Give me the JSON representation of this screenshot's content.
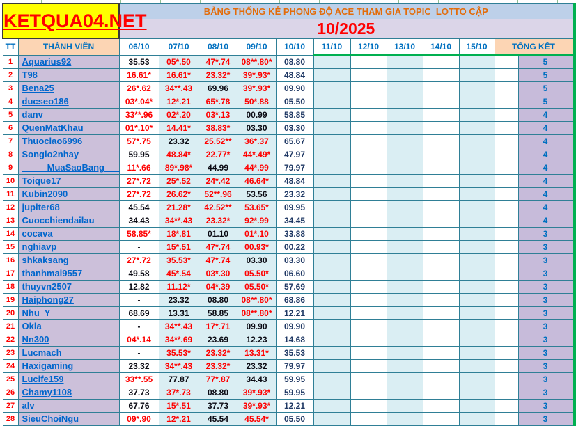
{
  "brand": {
    "logo": "KETQUA04.NET"
  },
  "header": {
    "title": "BẢNG THỐNG KÊ PHONG ĐỘ ACE THAM GIA TOPIC  LOTTO CẬP",
    "month": "10/2025"
  },
  "columns": {
    "tt": "TT",
    "member": "THÀNH VIÊN",
    "dates": [
      "06/10",
      "07/10",
      "08/10",
      "09/10",
      "10/10",
      "11/10",
      "12/10",
      "13/10",
      "14/10",
      "15/10"
    ],
    "total": "TỔNG KẾT"
  },
  "colors": {
    "accent_teal_border": "#2f7f96",
    "accent_green": "#00b050",
    "hit_red": "#ff0000",
    "miss_black": "#0b0b14",
    "result_navy": "#1f3864",
    "name_bg_lavender": "#ccc0da",
    "total_bg_purple": "#c7bbda",
    "date_bg_cyan": "#daeef3",
    "header_peach": "#fcd5b4",
    "title_bg_blue": "#bdd0e9",
    "month_bg_lavender": "#dbd5e8",
    "logo_bg_yellow": "#ffff00",
    "link_blue": "#0066cc"
  },
  "rows": [
    {
      "tt": "1",
      "name": "Aquarius92",
      "link": true,
      "cells": [
        "35.53",
        "05*.50",
        "47*.74",
        "08**.80*",
        "08.80"
      ],
      "red": [
        0,
        1,
        1,
        1,
        0
      ],
      "total": "5"
    },
    {
      "tt": "2",
      "name": "T98",
      "link": false,
      "cells": [
        "16.61*",
        "16.61*",
        "23.32*",
        "39*.93*",
        "48.84"
      ],
      "red": [
        1,
        1,
        1,
        1,
        0
      ],
      "total": "5"
    },
    {
      "tt": "3",
      "name": "Bena25",
      "link": true,
      "cells": [
        "26*.62",
        "34**.43",
        "69.96",
        "39*.93*",
        "09.90"
      ],
      "red": [
        1,
        1,
        0,
        1,
        0
      ],
      "total": "5"
    },
    {
      "tt": "4",
      "name": "ducseo186",
      "link": true,
      "cells": [
        "03*.04*",
        "12*.21",
        "65*.78",
        "50*.88",
        "05.50"
      ],
      "red": [
        1,
        1,
        1,
        1,
        0
      ],
      "total": "5"
    },
    {
      "tt": "5",
      "name": "danv",
      "link": false,
      "cells": [
        "33**.96",
        "02*.20",
        "03*.13",
        "00.99",
        "58.85"
      ],
      "red": [
        1,
        1,
        1,
        0,
        0
      ],
      "total": "4"
    },
    {
      "tt": "6",
      "name": "QuenMatKhau",
      "link": true,
      "cells": [
        "01*.10*",
        "14.41*",
        "38.83*",
        "03.30",
        "03.30"
      ],
      "red": [
        1,
        1,
        1,
        0,
        0
      ],
      "total": "4"
    },
    {
      "tt": "7",
      "name": "Thuoclao6996",
      "link": false,
      "cells": [
        "57*.75",
        "23.32",
        "25.52**",
        "36*.37",
        "65.67"
      ],
      "red": [
        1,
        0,
        1,
        1,
        0
      ],
      "total": "4"
    },
    {
      "tt": "8",
      "name": "Songlo2nhay",
      "link": false,
      "cells": [
        "59.95",
        "48.84*",
        "22.77*",
        "44*.49*",
        "47.97"
      ],
      "red": [
        0,
        1,
        1,
        1,
        0
      ],
      "total": "4"
    },
    {
      "tt": "9",
      "name": "_____MuaSaoBang___",
      "link": true,
      "cells": [
        "11*.66",
        "89*.98*",
        "44.99",
        "44*.99",
        "79.97"
      ],
      "red": [
        1,
        1,
        0,
        1,
        0
      ],
      "total": "4"
    },
    {
      "tt": "10",
      "name": "Toique17",
      "link": false,
      "cells": [
        "27*.72",
        "25*.52",
        "24*.42",
        "46.64*",
        "48.84"
      ],
      "red": [
        1,
        1,
        1,
        1,
        0
      ],
      "total": "4"
    },
    {
      "tt": "11",
      "name": "Kubin2090",
      "link": false,
      "cells": [
        "27*.72",
        "26.62*",
        "52**.96",
        "53.56",
        "23.32"
      ],
      "red": [
        1,
        1,
        1,
        0,
        0
      ],
      "total": "4"
    },
    {
      "tt": "12",
      "name": "jupiter68",
      "link": false,
      "cells": [
        "45.54",
        "21.28*",
        "42.52**",
        "53.65*",
        "09.95"
      ],
      "red": [
        0,
        1,
        1,
        1,
        0
      ],
      "total": "4"
    },
    {
      "tt": "13",
      "name": "Cuocchiendailau",
      "link": false,
      "cells": [
        "34.43",
        "34**.43",
        "23.32*",
        "92*.99",
        "34.45"
      ],
      "red": [
        0,
        1,
        1,
        1,
        0
      ],
      "total": "4"
    },
    {
      "tt": "14",
      "name": "cocava",
      "link": false,
      "cells": [
        "58.85*",
        "18*.81",
        "01.10",
        "01*.10",
        "33.88"
      ],
      "red": [
        1,
        1,
        0,
        1,
        0
      ],
      "total": "3"
    },
    {
      "tt": "15",
      "name": "nghiavp",
      "link": false,
      "cells": [
        "-",
        "15*.51",
        "47*.74",
        "00.93*",
        "00.22"
      ],
      "red": [
        0,
        1,
        1,
        1,
        0
      ],
      "total": "3"
    },
    {
      "tt": "16",
      "name": "shkaksang",
      "link": false,
      "cells": [
        "27*.72",
        "35.53*",
        "47*.74",
        "03.30",
        "03.30"
      ],
      "red": [
        1,
        1,
        1,
        0,
        0
      ],
      "total": "3"
    },
    {
      "tt": "17",
      "name": "thanhmai9557",
      "link": false,
      "cells": [
        "49.58",
        "45*.54",
        "03*.30",
        "05.50*",
        "06.60"
      ],
      "red": [
        0,
        1,
        1,
        1,
        0
      ],
      "total": "3"
    },
    {
      "tt": "18",
      "name": "thuyvn2507",
      "link": false,
      "cells": [
        "12.82",
        "11.12*",
        "04*.39",
        "05.50*",
        "57.69"
      ],
      "red": [
        0,
        1,
        1,
        1,
        0
      ],
      "total": "3"
    },
    {
      "tt": "19",
      "name": "Haiphong27",
      "link": true,
      "cells": [
        "-",
        "23.32",
        "08.80",
        "08**.80*",
        "68.86"
      ],
      "red": [
        0,
        0,
        0,
        1,
        0
      ],
      "total": "3"
    },
    {
      "tt": "20",
      "name": "Nhu  Y",
      "link": false,
      "cells": [
        "68.69",
        "13.31",
        "58.85",
        "08**.80*",
        "12.21"
      ],
      "red": [
        0,
        0,
        0,
        1,
        0
      ],
      "total": "3"
    },
    {
      "tt": "21",
      "name": "Okla",
      "link": false,
      "cells": [
        "-",
        "34**.43",
        "17*.71",
        "09.90",
        "09.90"
      ],
      "red": [
        0,
        1,
        1,
        0,
        0
      ],
      "total": "3"
    },
    {
      "tt": "22",
      "name": "Nn300",
      "link": true,
      "cells": [
        "04*.14",
        "34**.69",
        "23.69",
        "12.23",
        "14.68"
      ],
      "red": [
        1,
        1,
        0,
        0,
        0
      ],
      "total": "3"
    },
    {
      "tt": "23",
      "name": "Lucmach",
      "link": false,
      "cells": [
        "-",
        "35.53*",
        "23.32*",
        "13.31*",
        "35.53"
      ],
      "red": [
        0,
        1,
        1,
        1,
        0
      ],
      "total": "3"
    },
    {
      "tt": "24",
      "name": "Haxigaming",
      "link": false,
      "cells": [
        "23.32",
        "34**.43",
        "23.32*",
        "23.32",
        "79.97"
      ],
      "red": [
        0,
        1,
        1,
        0,
        0
      ],
      "total": "3"
    },
    {
      "tt": "25",
      "name": "Lucife159",
      "link": true,
      "cells": [
        "33**.55",
        "77.87",
        "77*.87",
        "34.43",
        "59.95"
      ],
      "red": [
        1,
        0,
        1,
        0,
        0
      ],
      "total": "3"
    },
    {
      "tt": "26",
      "name": "Chamy1108",
      "link": true,
      "cells": [
        "37.73",
        "37*.73",
        "08.80",
        "39*.93*",
        "59.95"
      ],
      "red": [
        0,
        1,
        0,
        1,
        0
      ],
      "total": "3"
    },
    {
      "tt": "27",
      "name": "alv",
      "link": false,
      "cells": [
        "67.76",
        "15*.51",
        "37.73",
        "39*.93*",
        "12.21"
      ],
      "red": [
        0,
        1,
        0,
        1,
        0
      ],
      "total": "3"
    },
    {
      "tt": "28",
      "name": "SieuChoiNgu",
      "link": false,
      "cells": [
        "09*.90",
        "12*.21",
        "45.54",
        "45.54*",
        "05.50"
      ],
      "red": [
        1,
        1,
        0,
        1,
        0
      ],
      "total": "3"
    }
  ]
}
